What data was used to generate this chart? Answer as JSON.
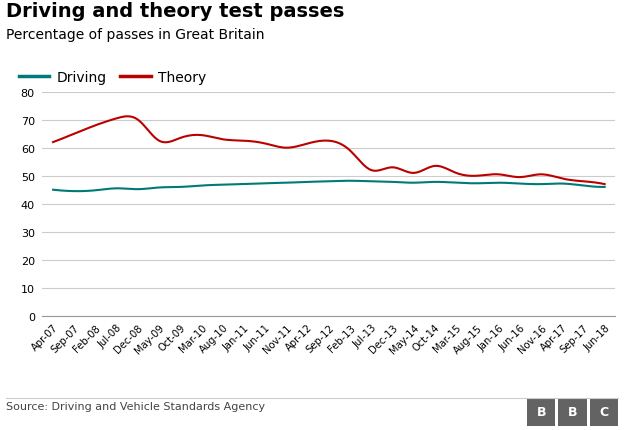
{
  "title": "Driving and theory test passes",
  "subtitle": "Percentage of passes in Great Britain",
  "source": "Source: Driving and Vehicle Standards Agency",
  "x_labels": [
    "Apr-07",
    "Sep-07",
    "Feb-08",
    "Jul-08",
    "Dec-08",
    "May-09",
    "Oct-09",
    "Mar-10",
    "Aug-10",
    "Jan-11",
    "Jun-11",
    "Nov-11",
    "Apr-12",
    "Sep-12",
    "Feb-13",
    "Jul-13",
    "Dec-13",
    "May-14",
    "Oct-14",
    "Mar-15",
    "Aug-15",
    "Jan-16",
    "Jun-16",
    "Nov-16",
    "Apr-17",
    "Sep-17",
    "Jun-18"
  ],
  "driving": [
    45.0,
    44.5,
    44.8,
    45.5,
    45.2,
    45.8,
    46.0,
    46.5,
    46.8,
    47.0,
    47.3,
    47.5,
    47.8,
    48.0,
    48.2,
    48.0,
    47.8,
    47.5,
    47.8,
    47.5,
    47.3,
    47.5,
    47.2,
    47.0,
    47.2,
    46.5,
    46.0
  ],
  "theory": [
    62.0,
    65.0,
    68.0,
    70.5,
    70.0,
    62.5,
    63.5,
    64.5,
    63.0,
    62.5,
    61.5,
    60.0,
    61.5,
    62.5,
    59.0,
    52.0,
    53.0,
    51.0,
    53.5,
    51.0,
    50.0,
    50.5,
    49.5,
    50.5,
    49.0,
    48.0,
    47.0
  ],
  "driving_color": "#007a78",
  "theory_color": "#bb0000",
  "ylim": [
    0,
    80
  ],
  "yticks": [
    0,
    10,
    20,
    30,
    40,
    50,
    60,
    70,
    80
  ],
  "background_color": "#ffffff",
  "grid_color": "#cccccc",
  "bbc_bg": "#636363"
}
